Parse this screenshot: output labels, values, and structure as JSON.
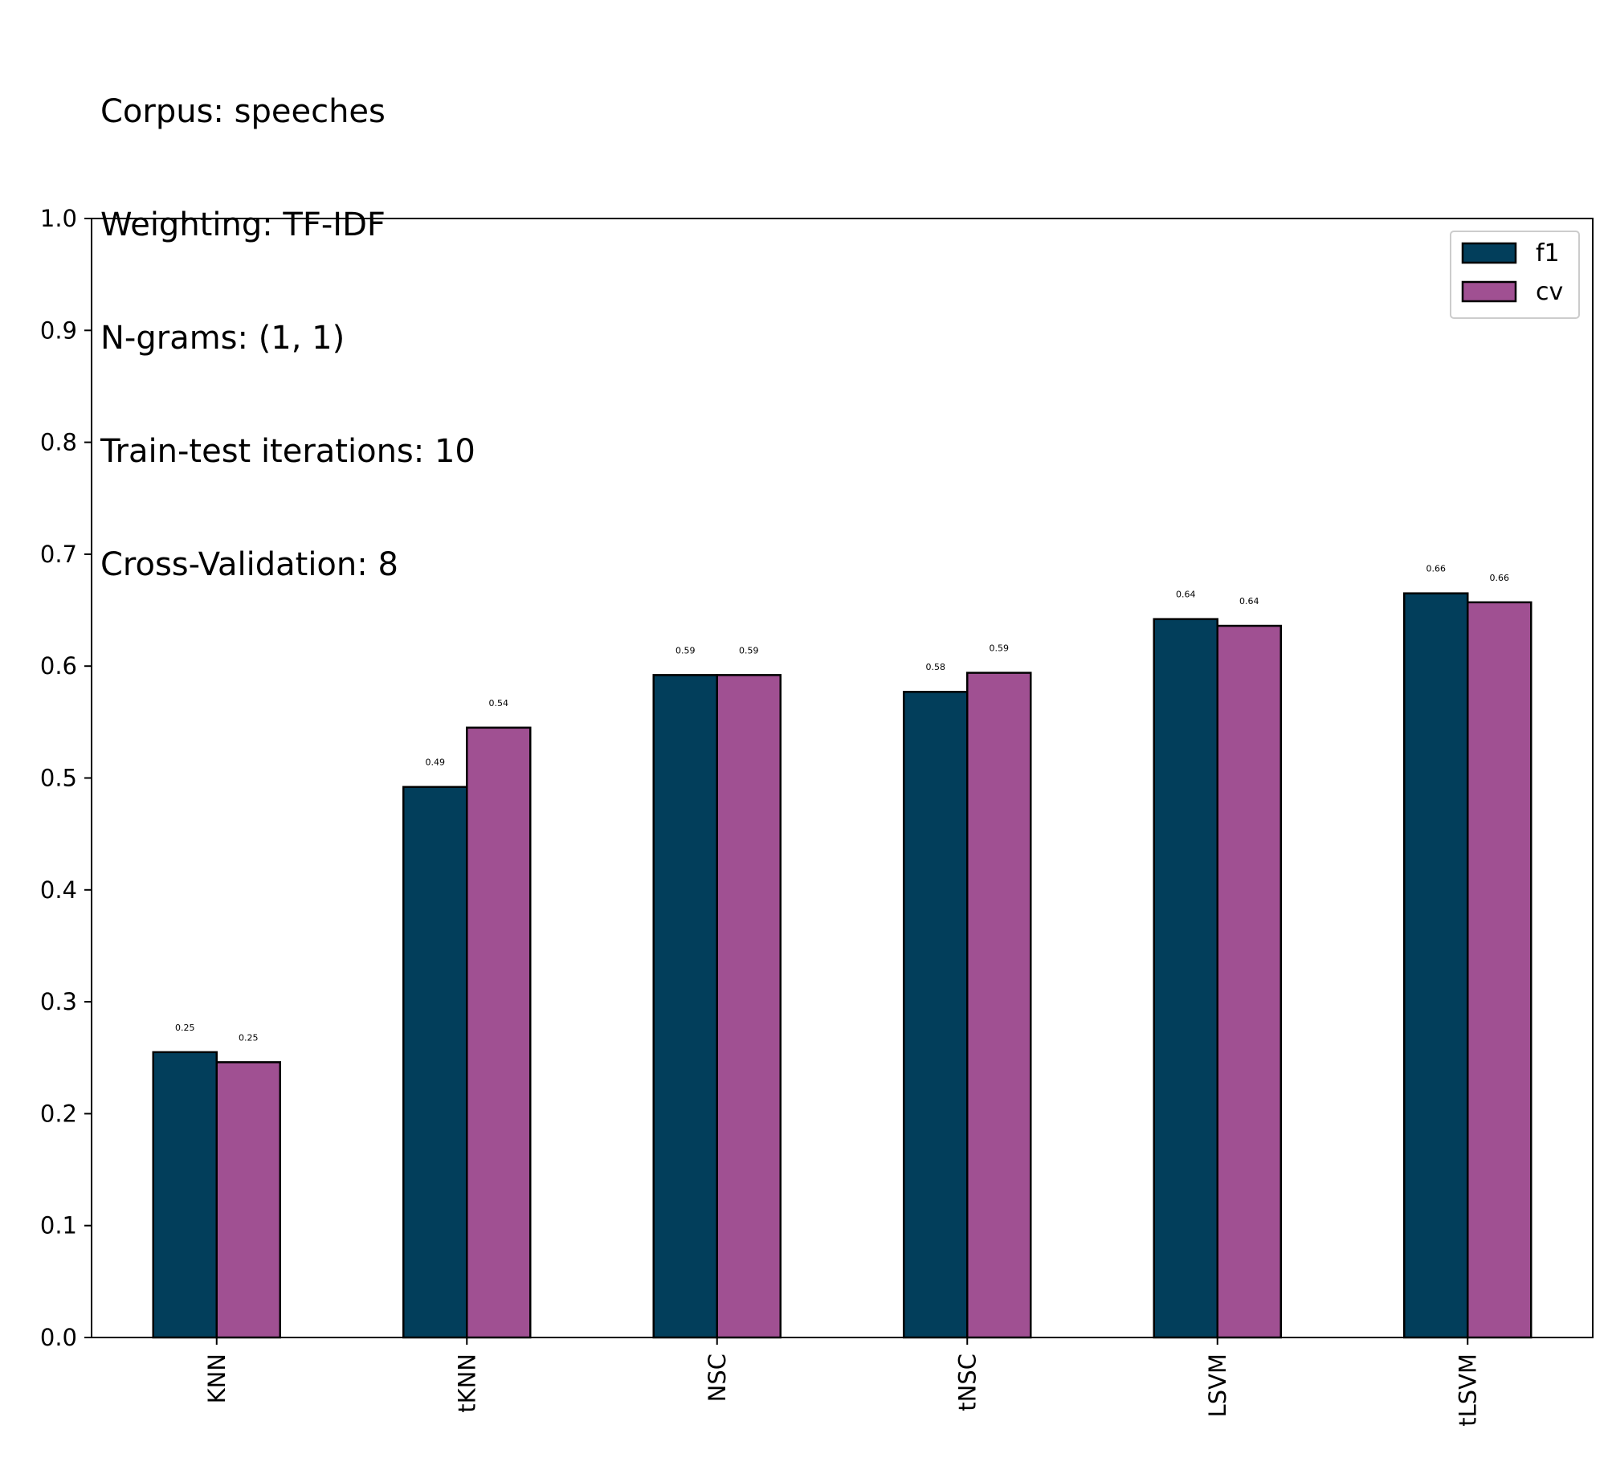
{
  "title_lines": [
    "Corpus: speeches",
    "Weighting: TF-IDF",
    "N-grams: (1, 1)",
    "Train-test iterations: 10",
    "Cross-Validation: 8"
  ],
  "chart_data": {
    "type": "bar",
    "categories": [
      "KNN",
      "tKNN",
      "NSC",
      "tNSC",
      "LSVM",
      "tLSVM"
    ],
    "series": [
      {
        "name": "f1",
        "color": "#023e5b",
        "values": [
          0.255,
          0.492,
          0.592,
          0.577,
          0.642,
          0.665
        ],
        "labels": [
          "0.25",
          "0.49",
          "0.59",
          "0.58",
          "0.64",
          "0.66"
        ]
      },
      {
        "name": "cv",
        "color": "#a05092",
        "values": [
          0.246,
          0.545,
          0.592,
          0.594,
          0.636,
          0.657
        ],
        "labels": [
          "0.25",
          "0.54",
          "0.59",
          "0.59",
          "0.64",
          "0.66"
        ]
      }
    ],
    "ylim": [
      0,
      1.0
    ],
    "yticks": [
      "0.0",
      "0.1",
      "0.2",
      "0.3",
      "0.4",
      "0.5",
      "0.6",
      "0.7",
      "0.8",
      "0.9",
      "1.0"
    ],
    "xlabel": "",
    "ylabel": "",
    "grid": false,
    "legend_position": "top-right",
    "xtick_rotation": "vertical"
  }
}
